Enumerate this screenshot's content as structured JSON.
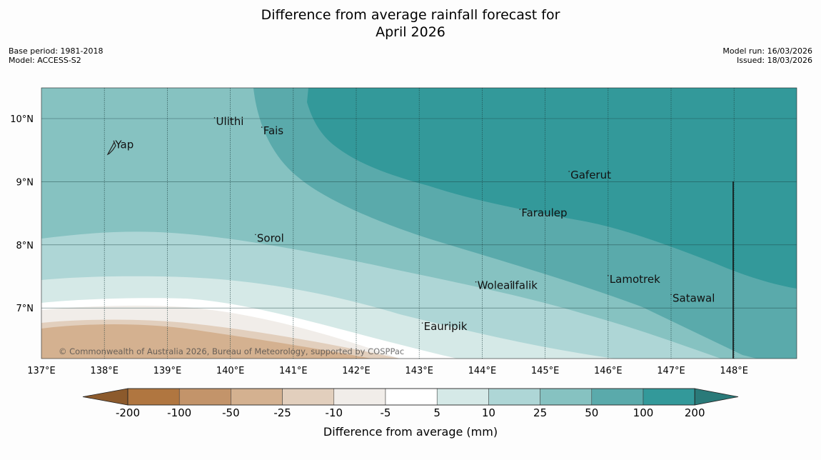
{
  "title": {
    "line1": "Difference from average rainfall forecast for",
    "line2": "April 2026"
  },
  "meta": {
    "base_period": "Base period: 1981-2018",
    "model": "Model: ACCESS-S2",
    "model_run": "Model run: 16/03/2026",
    "issued": "Issued: 18/03/2026"
  },
  "map": {
    "lon_range": [
      137,
      149
    ],
    "lat_range": [
      6.2,
      10.5
    ],
    "lon_ticks": [
      "137°E",
      "138°E",
      "139°E",
      "140°E",
      "141°E",
      "142°E",
      "143°E",
      "144°E",
      "145°E",
      "146°E",
      "147°E",
      "148°E"
    ],
    "lat_ticks": [
      "10°N",
      "9°N",
      "8°N",
      "7°N"
    ],
    "copyright": "© Commonwealth of Australia 2026, Bureau of Meteorology, supported by COSPPac",
    "places": [
      {
        "name": "Ulithi",
        "lon": 139.75,
        "lat": 9.9
      },
      {
        "name": "Fais",
        "lon": 140.5,
        "lat": 9.75
      },
      {
        "name": "Yap",
        "lon": 138.15,
        "lat": 9.53
      },
      {
        "name": "Gaferut",
        "lon": 145.38,
        "lat": 9.05
      },
      {
        "name": "Faraulep",
        "lon": 144.6,
        "lat": 8.45
      },
      {
        "name": "Sorol",
        "lon": 140.4,
        "lat": 8.05
      },
      {
        "name": "Lamotrek",
        "lon": 146.0,
        "lat": 7.4
      },
      {
        "name": "Woleai",
        "lon": 143.9,
        "lat": 7.3
      },
      {
        "name": "Ifalik",
        "lon": 144.45,
        "lat": 7.3
      },
      {
        "name": "Satawal",
        "lon": 147.0,
        "lat": 7.1
      },
      {
        "name": "Eauripik",
        "lon": 143.05,
        "lat": 6.65
      }
    ]
  },
  "colorbar": {
    "label": "Difference from average (mm)",
    "ticks": [
      "-200",
      "-100",
      "-50",
      "-25",
      "-10",
      "-5",
      "5",
      "10",
      "25",
      "50",
      "100",
      "200"
    ],
    "colors": [
      "#8c5a2c",
      "#b07640",
      "#c3946a",
      "#d4b190",
      "#e2cfbd",
      "#f1ede9",
      "#ffffff",
      "#d5e9e7",
      "#aed6d6",
      "#86c2c1",
      "#5aaaab",
      "#33999a",
      "#2a7a79"
    ]
  }
}
